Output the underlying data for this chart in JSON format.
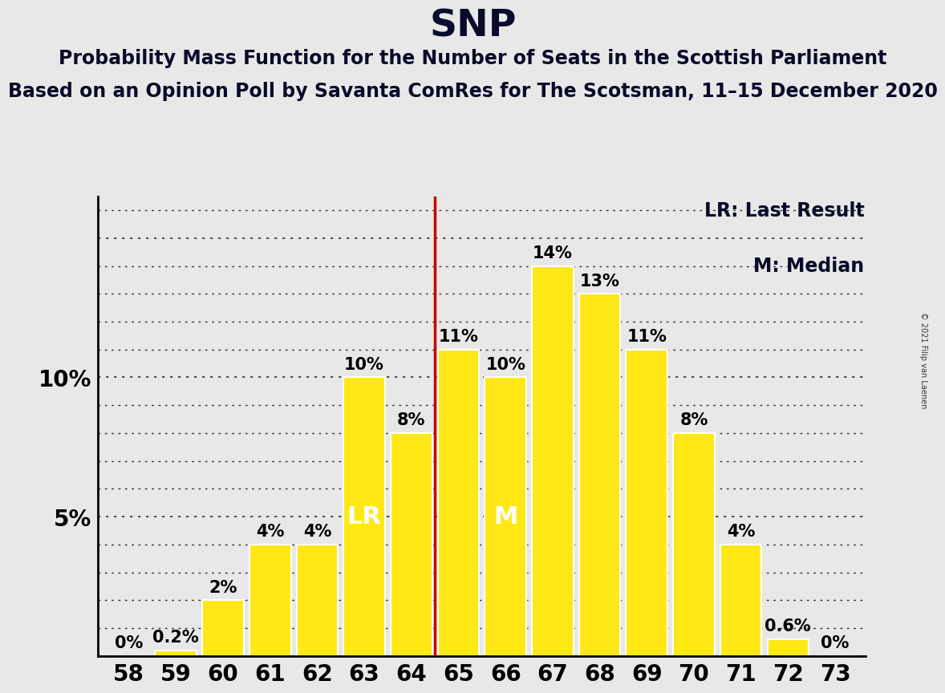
{
  "title": "SNP",
  "subtitle1": "Probability Mass Function for the Number of Seats in the Scottish Parliament",
  "subtitle2": "Based on an Opinion Poll by Savanta ComRes for The Scotsman, 11–15 December 2020",
  "copyright": "© 2021 Filip van Laenen",
  "categories": [
    58,
    59,
    60,
    61,
    62,
    63,
    64,
    65,
    66,
    67,
    68,
    69,
    70,
    71,
    72,
    73
  ],
  "values": [
    0.0,
    0.2,
    2.0,
    4.0,
    4.0,
    10.0,
    8.0,
    11.0,
    10.0,
    14.0,
    13.0,
    11.0,
    8.0,
    4.0,
    0.6,
    0.0
  ],
  "bar_color": "#FFE816",
  "bar_edge_color": "#FFFFFF",
  "last_result_color": "#CC0000",
  "label_lr": "LR",
  "label_m": "M",
  "legend_lr": "LR: Last Result",
  "legend_m": "M: Median",
  "background_color": "#E8E8E8",
  "grid_color": "#333333",
  "title_fontsize": 34,
  "subtitle1_fontsize": 17,
  "subtitle2_fontsize": 17,
  "tick_fontsize": 20,
  "bar_label_fontsize": 15,
  "legend_fontsize": 17,
  "inner_label_fontsize": 22,
  "ylim": [
    0,
    16.5
  ]
}
